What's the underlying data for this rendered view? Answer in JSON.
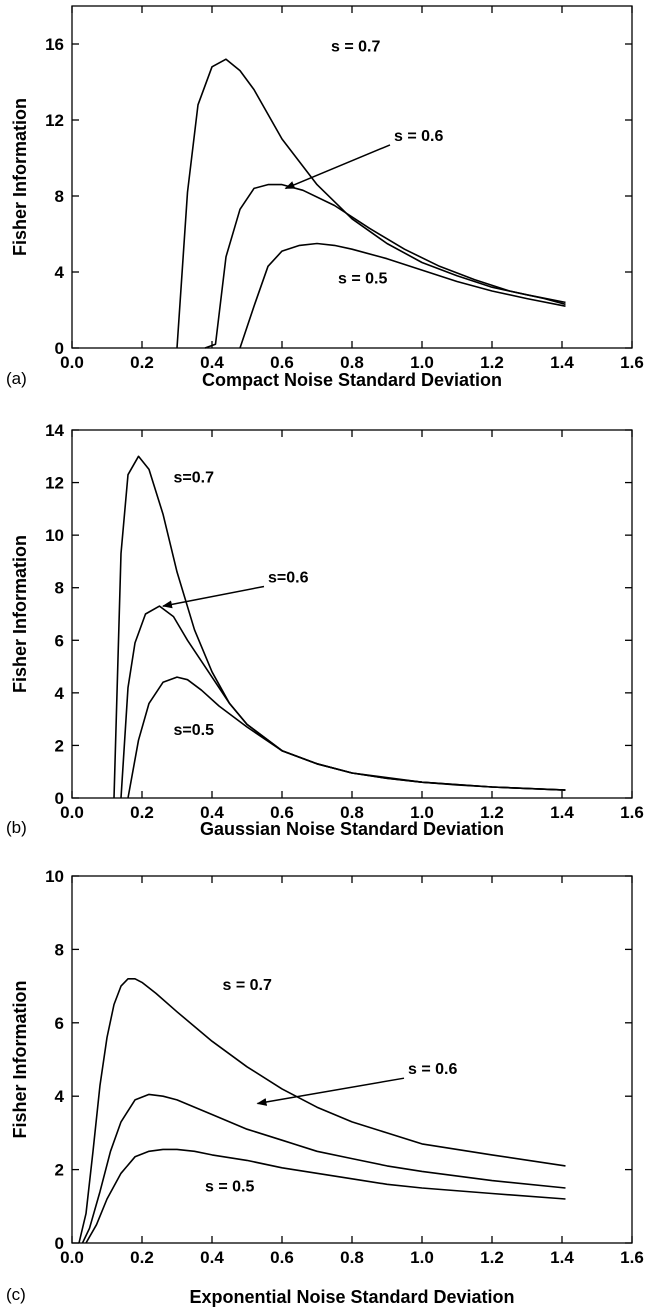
{
  "chart_data": [
    {
      "type": "line",
      "panel_label": "(a)",
      "xlabel": "Compact Noise Standard Deviation",
      "ylabel": "Fisher Information",
      "xlim": [
        0,
        1.6
      ],
      "ylim": [
        0,
        18
      ],
      "xticks": [
        0.0,
        0.2,
        0.4,
        0.6,
        0.8,
        1.0,
        1.2,
        1.4,
        1.6
      ],
      "yticks": [
        0,
        4,
        8,
        12,
        16
      ],
      "xtick_labels": [
        "0.0",
        "0.2",
        "0.4",
        "0.6",
        "0.8",
        "1.0",
        "1.2",
        "1.4",
        "1.6"
      ],
      "ytick_labels": [
        "0",
        "4",
        "8",
        "12",
        "16"
      ],
      "series": [
        {
          "name": "s = 0.7",
          "x": [
            0.3,
            0.33,
            0.36,
            0.4,
            0.44,
            0.48,
            0.52,
            0.6,
            0.7,
            0.8,
            0.9,
            1.0,
            1.1,
            1.2,
            1.3,
            1.41
          ],
          "y": [
            0,
            8.2,
            12.8,
            14.8,
            15.2,
            14.6,
            13.6,
            11.0,
            8.6,
            6.8,
            5.5,
            4.5,
            3.8,
            3.2,
            2.8,
            2.4
          ]
        },
        {
          "name": "s = 0.6",
          "x": [
            0.38,
            0.41,
            0.44,
            0.48,
            0.52,
            0.56,
            0.6,
            0.66,
            0.75,
            0.85,
            0.95,
            1.05,
            1.15,
            1.25,
            1.35,
            1.41
          ],
          "y": [
            0,
            0.2,
            4.8,
            7.3,
            8.4,
            8.6,
            8.6,
            8.3,
            7.5,
            6.3,
            5.2,
            4.3,
            3.6,
            3.0,
            2.6,
            2.3
          ]
        },
        {
          "name": "s = 0.5",
          "x": [
            0.48,
            0.52,
            0.56,
            0.6,
            0.65,
            0.7,
            0.75,
            0.8,
            0.9,
            1.0,
            1.1,
            1.2,
            1.3,
            1.41
          ],
          "y": [
            0,
            2.2,
            4.3,
            5.1,
            5.4,
            5.5,
            5.4,
            5.2,
            4.7,
            4.1,
            3.5,
            3.0,
            2.6,
            2.2
          ]
        }
      ],
      "annotations": [
        {
          "text": "s = 0.7",
          "x": 0.74,
          "y": 15.6
        },
        {
          "text": "s = 0.6",
          "x": 0.92,
          "y": 10.9,
          "arrow_to": [
            0.61,
            8.4
          ]
        },
        {
          "text": "s = 0.5",
          "x": 0.76,
          "y": 3.4
        }
      ]
    },
    {
      "type": "line",
      "panel_label": "(b)",
      "xlabel": "Gaussian Noise Standard Deviation",
      "ylabel": "Fisher Information",
      "xlim": [
        0,
        1.6
      ],
      "ylim": [
        0,
        14
      ],
      "xticks": [
        0.0,
        0.2,
        0.4,
        0.6,
        0.8,
        1.0,
        1.2,
        1.4,
        1.6
      ],
      "yticks": [
        0,
        2,
        4,
        6,
        8,
        10,
        12,
        14
      ],
      "xtick_labels": [
        "0.0",
        "0.2",
        "0.4",
        "0.6",
        "0.8",
        "1.0",
        "1.2",
        "1.4",
        "1.6"
      ],
      "ytick_labels": [
        "0",
        "2",
        "4",
        "6",
        "8",
        "10",
        "12",
        "14"
      ],
      "series": [
        {
          "name": "s=0.7",
          "x": [
            0.12,
            0.14,
            0.16,
            0.19,
            0.22,
            0.26,
            0.3,
            0.35,
            0.4,
            0.45,
            0.5,
            0.6,
            0.7,
            0.8,
            0.9,
            1.0,
            1.1,
            1.2,
            1.3,
            1.41
          ],
          "y": [
            0,
            9.3,
            12.3,
            13.0,
            12.5,
            10.8,
            8.6,
            6.4,
            4.8,
            3.6,
            2.8,
            1.8,
            1.3,
            0.95,
            0.75,
            0.6,
            0.5,
            0.42,
            0.36,
            0.3
          ]
        },
        {
          "name": "s=0.6",
          "x": [
            0.14,
            0.16,
            0.18,
            0.21,
            0.25,
            0.29,
            0.33,
            0.38,
            0.45,
            0.5,
            0.6,
            0.7,
            0.8,
            0.9,
            1.0,
            1.2,
            1.41
          ],
          "y": [
            0,
            4.2,
            5.9,
            7.0,
            7.3,
            6.9,
            6.0,
            5.0,
            3.6,
            2.8,
            1.8,
            1.3,
            0.95,
            0.75,
            0.6,
            0.42,
            0.3
          ]
        },
        {
          "name": "s=0.5",
          "x": [
            0.16,
            0.19,
            0.22,
            0.26,
            0.3,
            0.33,
            0.37,
            0.42,
            0.47,
            0.5,
            0.6,
            0.7,
            0.8,
            1.0,
            1.2,
            1.41
          ],
          "y": [
            0,
            2.2,
            3.6,
            4.4,
            4.6,
            4.5,
            4.1,
            3.5,
            3.0,
            2.7,
            1.8,
            1.3,
            0.95,
            0.6,
            0.42,
            0.3
          ]
        }
      ],
      "annotations": [
        {
          "text": "s=0.7",
          "x": 0.29,
          "y": 12.0
        },
        {
          "text": "s=0.6",
          "x": 0.56,
          "y": 8.2,
          "arrow_to": [
            0.26,
            7.3
          ]
        },
        {
          "text": "s=0.5",
          "x": 0.29,
          "y": 2.4
        }
      ]
    },
    {
      "type": "line",
      "panel_label": "(c)",
      "xlabel": "Exponential Noise Standard Deviation",
      "ylabel": "Fisher Information",
      "xlim": [
        0,
        1.6
      ],
      "ylim": [
        0,
        10
      ],
      "xticks": [
        0.0,
        0.2,
        0.4,
        0.6,
        0.8,
        1.0,
        1.2,
        1.4,
        1.6
      ],
      "yticks": [
        0,
        2,
        4,
        6,
        8,
        10
      ],
      "xtick_labels": [
        "0.0",
        "0.2",
        "0.4",
        "0.6",
        "0.8",
        "1.0",
        "1.2",
        "1.4",
        "1.6"
      ],
      "ytick_labels": [
        "0",
        "2",
        "4",
        "6",
        "8",
        "10"
      ],
      "series": [
        {
          "name": "s = 0.7",
          "x": [
            0.02,
            0.04,
            0.06,
            0.08,
            0.1,
            0.12,
            0.14,
            0.16,
            0.18,
            0.2,
            0.24,
            0.3,
            0.4,
            0.5,
            0.6,
            0.7,
            0.8,
            0.9,
            1.0,
            1.2,
            1.41
          ],
          "y": [
            0,
            0.8,
            2.5,
            4.3,
            5.6,
            6.5,
            7.0,
            7.2,
            7.2,
            7.1,
            6.8,
            6.3,
            5.5,
            4.8,
            4.2,
            3.7,
            3.3,
            3.0,
            2.7,
            2.4,
            2.1
          ]
        },
        {
          "name": "s = 0.6",
          "x": [
            0.03,
            0.05,
            0.08,
            0.11,
            0.14,
            0.18,
            0.22,
            0.26,
            0.3,
            0.4,
            0.5,
            0.6,
            0.7,
            0.8,
            0.9,
            1.0,
            1.2,
            1.41
          ],
          "y": [
            0,
            0.4,
            1.4,
            2.5,
            3.3,
            3.9,
            4.05,
            4.0,
            3.9,
            3.5,
            3.1,
            2.8,
            2.5,
            2.3,
            2.1,
            1.95,
            1.7,
            1.5
          ]
        },
        {
          "name": "s = 0.5",
          "x": [
            0.04,
            0.07,
            0.1,
            0.14,
            0.18,
            0.22,
            0.26,
            0.3,
            0.35,
            0.4,
            0.5,
            0.6,
            0.7,
            0.8,
            0.9,
            1.0,
            1.2,
            1.41
          ],
          "y": [
            0,
            0.5,
            1.2,
            1.9,
            2.35,
            2.5,
            2.55,
            2.55,
            2.5,
            2.4,
            2.25,
            2.05,
            1.9,
            1.75,
            1.6,
            1.5,
            1.35,
            1.2
          ]
        }
      ],
      "annotations": [
        {
          "text": "s = 0.7",
          "x": 0.43,
          "y": 6.9
        },
        {
          "text": "s = 0.6",
          "x": 0.96,
          "y": 4.6,
          "arrow_to": [
            0.53,
            3.8
          ]
        },
        {
          "text": "s = 0.5",
          "x": 0.38,
          "y": 1.4
        }
      ]
    }
  ]
}
